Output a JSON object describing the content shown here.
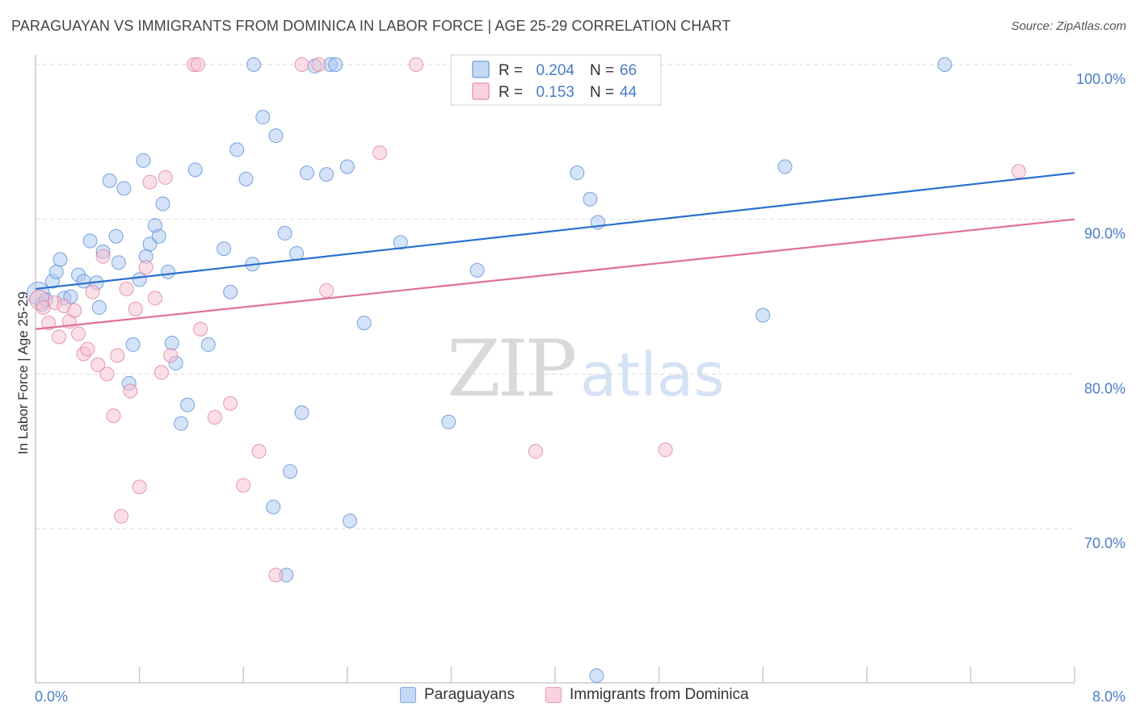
{
  "title": "PARAGUAYAN VS IMMIGRANTS FROM DOMINICA IN LABOR FORCE | AGE 25-29 CORRELATION CHART",
  "source": "Source: ZipAtlas.com",
  "watermark": {
    "zip": "ZIP",
    "atlas": "atlas"
  },
  "colors": {
    "blue_fill": "#a9c8f0",
    "blue_stroke": "#5b8fd6",
    "blue_line": "#2a6fcf",
    "pink_fill": "#f7bfd0",
    "pink_stroke": "#e07fa0",
    "pink_line": "#e0709a",
    "axis_label": "#4a7cc9",
    "grid": "#d9d9d9"
  },
  "legend_top": {
    "rows": [
      {
        "r_label": "R = ",
        "r_value": "0.204",
        "n_label": "N = ",
        "n_value": "66"
      },
      {
        "r_label": "R = ",
        "r_value": "0.153",
        "n_label": "N = ",
        "n_value": "44"
      }
    ]
  },
  "legend_bottom": [
    "Paraguayans",
    "Immigrants from Dominica"
  ],
  "chart_data": {
    "type": "scatter",
    "title": "PARAGUAYAN VS IMMIGRANTS FROM DOMINICA IN LABOR FORCE | AGE 25-29 CORRELATION CHART",
    "xlabel": "",
    "ylabel": "In Labor Force | Age 25-29",
    "xlim": [
      0,
      8
    ],
    "ylim": [
      60,
      101
    ],
    "x_tick_labels": [
      "0.0%",
      "8.0%"
    ],
    "y_ticks": [
      70,
      80,
      90,
      100
    ],
    "y_tick_labels": [
      "70.0%",
      "80.0%",
      "90.0%",
      "100.0%"
    ],
    "grid": true,
    "legend_position": "top-center",
    "series": [
      {
        "name": "Paraguayans",
        "R": 0.204,
        "N": 66,
        "trend": {
          "x": [
            0,
            8
          ],
          "y": [
            85.5,
            93.0
          ]
        },
        "points": [
          [
            0.02,
            85.2
          ],
          [
            0.05,
            84.5
          ],
          [
            0.08,
            84.8
          ],
          [
            0.13,
            86.0
          ],
          [
            0.16,
            86.6
          ],
          [
            0.19,
            87.4
          ],
          [
            0.22,
            84.9
          ],
          [
            0.27,
            85.0
          ],
          [
            0.33,
            86.4
          ],
          [
            0.37,
            86.0
          ],
          [
            0.42,
            88.6
          ],
          [
            0.47,
            85.9
          ],
          [
            0.49,
            84.3
          ],
          [
            0.52,
            87.9
          ],
          [
            0.57,
            92.5
          ],
          [
            0.62,
            88.9
          ],
          [
            0.64,
            87.2
          ],
          [
            0.68,
            92.0
          ],
          [
            0.72,
            79.4
          ],
          [
            0.75,
            81.9
          ],
          [
            0.8,
            86.1
          ],
          [
            0.83,
            93.8
          ],
          [
            0.85,
            87.6
          ],
          [
            0.88,
            88.4
          ],
          [
            0.92,
            89.6
          ],
          [
            0.95,
            88.9
          ],
          [
            0.98,
            91.0
          ],
          [
            1.02,
            86.6
          ],
          [
            1.05,
            82.0
          ],
          [
            1.08,
            80.7
          ],
          [
            1.12,
            76.8
          ],
          [
            1.17,
            78.0
          ],
          [
            1.23,
            93.2
          ],
          [
            1.33,
            81.9
          ],
          [
            1.45,
            88.1
          ],
          [
            1.5,
            85.3
          ],
          [
            1.55,
            94.5
          ],
          [
            1.62,
            92.6
          ],
          [
            1.67,
            87.1
          ],
          [
            1.68,
            100.0
          ],
          [
            1.75,
            96.6
          ],
          [
            1.83,
            71.4
          ],
          [
            1.85,
            95.4
          ],
          [
            1.92,
            89.1
          ],
          [
            1.96,
            73.7
          ],
          [
            2.01,
            87.8
          ],
          [
            2.05,
            77.5
          ],
          [
            2.09,
            93.0
          ],
          [
            2.15,
            99.9
          ],
          [
            2.24,
            92.9
          ],
          [
            2.27,
            100.0
          ],
          [
            2.31,
            100.0
          ],
          [
            2.4,
            93.4
          ],
          [
            2.42,
            70.5
          ],
          [
            2.53,
            83.3
          ],
          [
            2.81,
            88.5
          ],
          [
            3.18,
            76.9
          ],
          [
            3.4,
            86.7
          ],
          [
            4.17,
            93.0
          ],
          [
            4.27,
            91.3
          ],
          [
            4.33,
            89.8
          ],
          [
            4.32,
            60.5
          ],
          [
            5.6,
            83.8
          ],
          [
            5.77,
            93.4
          ],
          [
            7.0,
            100.0
          ],
          [
            1.93,
            67.0
          ]
        ]
      },
      {
        "name": "Immigrants from Dominica",
        "R": 0.153,
        "N": 44,
        "trend": {
          "x": [
            0,
            8
          ],
          "y": [
            82.9,
            90.0
          ]
        },
        "points": [
          [
            0.03,
            84.8
          ],
          [
            0.06,
            84.3
          ],
          [
            0.1,
            83.3
          ],
          [
            0.15,
            84.6
          ],
          [
            0.18,
            82.4
          ],
          [
            0.22,
            84.4
          ],
          [
            0.26,
            83.4
          ],
          [
            0.3,
            84.1
          ],
          [
            0.33,
            82.6
          ],
          [
            0.37,
            81.3
          ],
          [
            0.4,
            81.6
          ],
          [
            0.44,
            85.3
          ],
          [
            0.48,
            80.6
          ],
          [
            0.52,
            87.6
          ],
          [
            0.55,
            80.0
          ],
          [
            0.6,
            77.3
          ],
          [
            0.63,
            81.2
          ],
          [
            0.66,
            70.8
          ],
          [
            0.7,
            85.5
          ],
          [
            0.73,
            78.9
          ],
          [
            0.77,
            84.2
          ],
          [
            0.8,
            72.7
          ],
          [
            0.85,
            86.9
          ],
          [
            0.88,
            92.4
          ],
          [
            0.92,
            84.9
          ],
          [
            0.97,
            80.1
          ],
          [
            1.0,
            92.7
          ],
          [
            1.04,
            81.2
          ],
          [
            1.22,
            100.0
          ],
          [
            1.25,
            100.0
          ],
          [
            1.27,
            82.9
          ],
          [
            1.38,
            77.2
          ],
          [
            1.5,
            78.1
          ],
          [
            1.6,
            72.8
          ],
          [
            1.72,
            75.0
          ],
          [
            1.85,
            67.0
          ],
          [
            2.05,
            100.0
          ],
          [
            2.18,
            100.0
          ],
          [
            2.24,
            85.4
          ],
          [
            2.65,
            94.3
          ],
          [
            2.93,
            100.0
          ],
          [
            3.85,
            75.0
          ],
          [
            4.85,
            75.1
          ],
          [
            7.57,
            93.1
          ]
        ]
      }
    ]
  }
}
